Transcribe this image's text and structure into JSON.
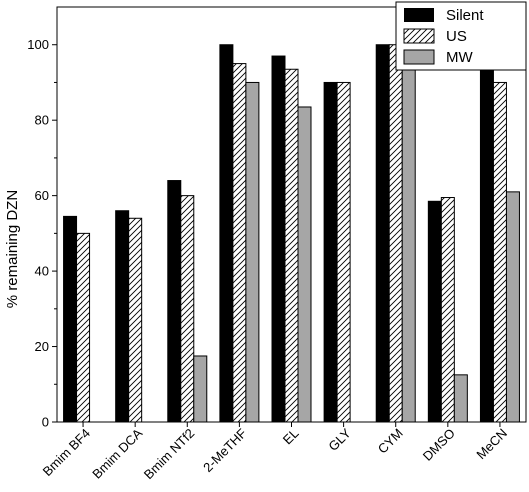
{
  "chart_data": {
    "type": "bar",
    "title": "",
    "xlabel": "",
    "ylabel": "% remaining DZN",
    "ylim": [
      0,
      110
    ],
    "yticks": [
      0,
      20,
      40,
      60,
      80,
      100
    ],
    "categories": [
      "Bmim BF4",
      "Bmim DCA",
      "Bmim NTf2",
      "2-MeTHF",
      "EL",
      "GLY",
      "CYM",
      "DMSO",
      "MeCN"
    ],
    "series": [
      {
        "name": "Silent",
        "values": [
          54.5,
          56,
          64,
          100,
          97,
          90,
          100,
          58.5,
          100
        ],
        "fill": "black"
      },
      {
        "name": "US",
        "values": [
          50,
          54,
          60,
          95,
          93.5,
          90,
          100,
          59.5,
          90
        ],
        "fill": "hatch"
      },
      {
        "name": "MW",
        "values": [
          0,
          0,
          17.5,
          90,
          83.5,
          0,
          100,
          12.5,
          61
        ],
        "fill": "gray"
      }
    ],
    "legend_position": "top-right",
    "colors": {
      "silent": "#000000",
      "mw": "#a6a6a6",
      "hatch_line": "#000000"
    }
  }
}
